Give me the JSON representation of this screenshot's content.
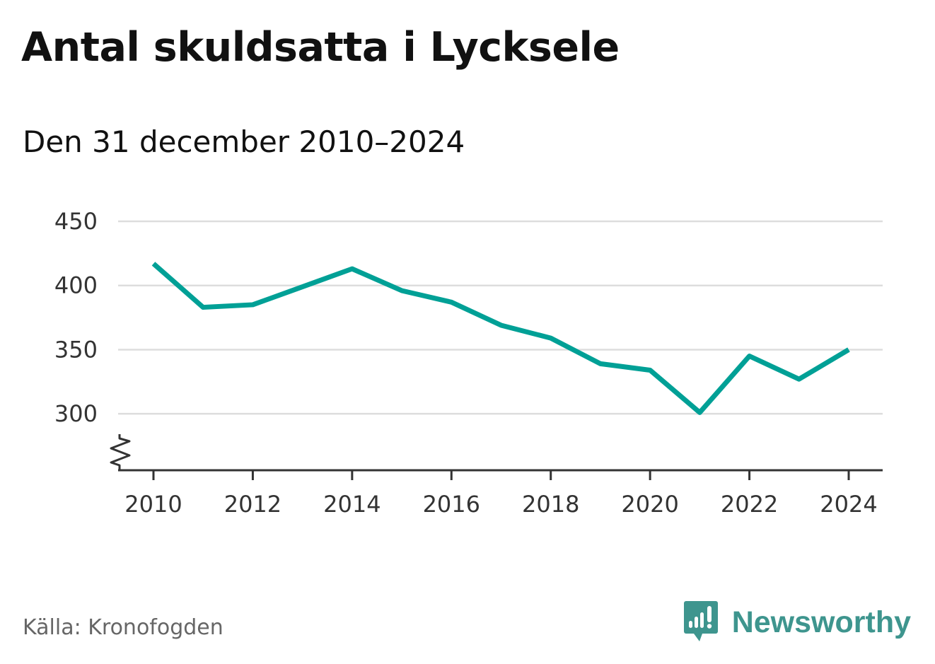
{
  "header": {
    "title": "Antal skuldsatta i Lycksele",
    "subtitle": "Den 31 december 2010–2024"
  },
  "footer": {
    "source": "Källa: Kronofogden",
    "brand": "Newsworthy"
  },
  "colors": {
    "line": "#00a096",
    "grid": "#dddddd",
    "axis": "#333333",
    "brand": "#3e958e"
  },
  "chart_data": {
    "type": "line",
    "title": "Antal skuldsatta i Lycksele",
    "subtitle": "Den 31 december 2010–2024",
    "x": [
      2010,
      2011,
      2012,
      2013,
      2014,
      2015,
      2016,
      2017,
      2018,
      2019,
      2020,
      2021,
      2022,
      2023,
      2024
    ],
    "series": [
      {
        "values": [
          417,
          383,
          385,
          399,
          413,
          396,
          387,
          369,
          359,
          339,
          334,
          301,
          345,
          327,
          350
        ]
      }
    ],
    "x_ticks": [
      "2010",
      "2012",
      "2014",
      "2016",
      "2018",
      "2020",
      "2022",
      "2024"
    ],
    "y_ticks": [
      "300",
      "350",
      "400",
      "450"
    ],
    "ylim": [
      256,
      450
    ],
    "xlim": [
      2010,
      2024
    ],
    "y_axis_break": true,
    "grid": "horizontal",
    "xlabel": "",
    "ylabel": ""
  }
}
